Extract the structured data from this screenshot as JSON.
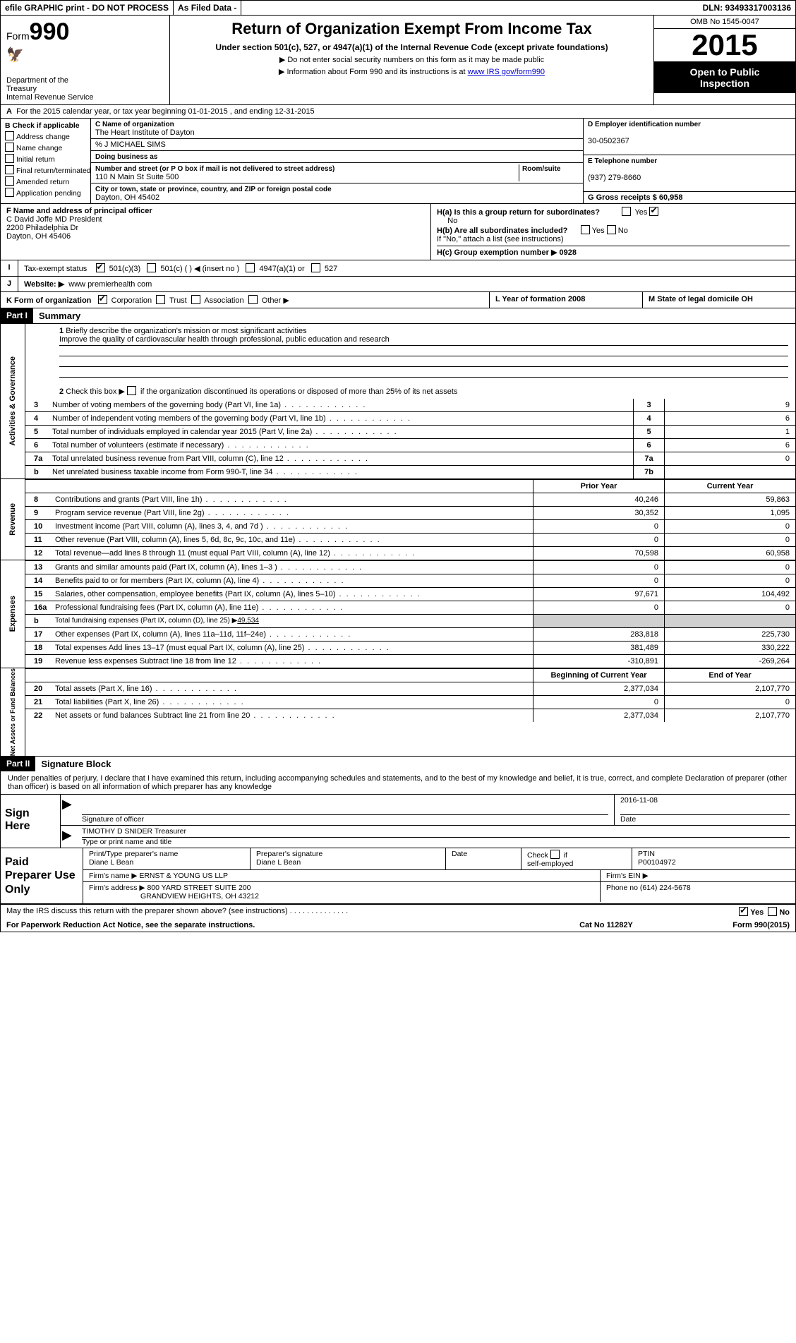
{
  "topbar": {
    "efile": "efile GRAPHIC print - DO NOT PROCESS",
    "asfiled": "As Filed Data -",
    "dln": "DLN: 93493317003136"
  },
  "header": {
    "form_prefix": "Form",
    "form_number": "990",
    "dept1": "Department of the",
    "dept2": "Treasury",
    "dept3": "Internal Revenue Service",
    "title": "Return of Organization Exempt From Income Tax",
    "subtitle": "Under section 501(c), 527, or 4947(a)(1) of the Internal Revenue Code (except private foundations)",
    "note1": "Do not enter social security numbers on this form as it may be made public",
    "note2_prefix": "Information about Form 990 and its instructions is at ",
    "note2_link": "www IRS gov/form990",
    "omb": "OMB No 1545-0047",
    "year": "2015",
    "open1": "Open to Public",
    "open2": "Inspection"
  },
  "rowA": {
    "prefix": "A",
    "text": "For the 2015 calendar year, or tax year beginning 01-01-2015     , and ending 12-31-2015"
  },
  "colB": {
    "label": "B  Check if applicable",
    "items": [
      "Address change",
      "Name change",
      "Initial return",
      "Final return/terminated",
      "Amended return",
      "Application pending"
    ]
  },
  "colC": {
    "c_label": "C Name of organization",
    "org": "The Heart Institute of Dayton",
    "care": "% J MICHAEL SIMS",
    "dba_label": "Doing business as",
    "addr_label": "Number and street (or P O box if mail is not delivered to street address)",
    "room_label": "Room/suite",
    "addr": "110 N Main St Suite 500",
    "city_label": "City or town, state or province, country, and ZIP or foreign postal code",
    "city": "Dayton, OH  45402",
    "f_label": "F  Name and address of principal officer",
    "f_name": "C David Joffe MD President",
    "f_addr": "2200 Philadelphia Dr",
    "f_city": "Dayton, OH  45406"
  },
  "colD": {
    "d_label": "D Employer identification number",
    "ein": "30-0502367",
    "e_label": "E Telephone number",
    "phone": "(937) 279-8660",
    "g_label": "G Gross receipts $ 60,958"
  },
  "rowH": {
    "ha": "H(a)  Is this a group return for subordinates?",
    "ha_ans_no": "No",
    "hb": "H(b)  Are all subordinates included?",
    "hb_note": "If \"No,\" attach a list  (see instructions)",
    "hc": "H(c)  Group exemption number ▶  0928",
    "yes": "Yes",
    "no": "No"
  },
  "rowI": {
    "label": "I",
    "text": "Tax-exempt status",
    "opts": [
      "501(c)(3)",
      "501(c) (  ) ◀ (insert no )",
      "4947(a)(1) or",
      "527"
    ]
  },
  "rowJ": {
    "label": "J",
    "text": "Website: ▶",
    "url": "www premierhealth com"
  },
  "rowK": {
    "k": "K Form of organization",
    "opts": [
      "Corporation",
      "Trust",
      "Association",
      "Other ▶"
    ],
    "l": "L Year of formation  2008",
    "m": "M State of legal domicile  OH"
  },
  "part1": {
    "hdr": "Part I",
    "title": "Summary",
    "q1_num": "1",
    "q1": "Briefly describe the organization's mission or most significant activities",
    "q1_ans": "Improve the quality of cardiovascular health through professional, public education and research",
    "q2_num": "2",
    "q2": "Check this box ▶      if the organization discontinued its operations or disposed of more than 25% of its net assets"
  },
  "gov": {
    "label": "Activities & Governance",
    "rows": [
      {
        "n": "3",
        "t": "Number of voting members of the governing body (Part VI, line 1a)",
        "an": "3",
        "v": "9"
      },
      {
        "n": "4",
        "t": "Number of independent voting members of the governing body (Part VI, line 1b)",
        "an": "4",
        "v": "6"
      },
      {
        "n": "5",
        "t": "Total number of individuals employed in calendar year 2015 (Part V, line 2a)",
        "an": "5",
        "v": "1"
      },
      {
        "n": "6",
        "t": "Total number of volunteers (estimate if necessary)",
        "an": "6",
        "v": "6"
      },
      {
        "n": "7a",
        "t": "Total unrelated business revenue from Part VIII, column (C), line 12",
        "an": "7a",
        "v": "0"
      },
      {
        "n": "b",
        "t": "Net unrelated business taxable income from Form 990-T, line 34",
        "an": "7b",
        "v": ""
      }
    ]
  },
  "rev": {
    "label": "Revenue",
    "hdr_prior": "Prior Year",
    "hdr_curr": "Current Year",
    "rows": [
      {
        "n": "8",
        "t": "Contributions and grants (Part VIII, line 1h)",
        "p": "40,246",
        "c": "59,863"
      },
      {
        "n": "9",
        "t": "Program service revenue (Part VIII, line 2g)",
        "p": "30,352",
        "c": "1,095"
      },
      {
        "n": "10",
        "t": "Investment income (Part VIII, column (A), lines 3, 4, and 7d )",
        "p": "0",
        "c": "0"
      },
      {
        "n": "11",
        "t": "Other revenue (Part VIII, column (A), lines 5, 6d, 8c, 9c, 10c, and 11e)",
        "p": "0",
        "c": "0"
      },
      {
        "n": "12",
        "t": "Total revenue—add lines 8 through 11 (must equal Part VIII, column (A), line 12)",
        "p": "70,598",
        "c": "60,958"
      }
    ]
  },
  "exp": {
    "label": "Expenses",
    "rows": [
      {
        "n": "13",
        "t": "Grants and similar amounts paid (Part IX, column (A), lines 1–3 )",
        "p": "0",
        "c": "0"
      },
      {
        "n": "14",
        "t": "Benefits paid to or for members (Part IX, column (A), line 4)",
        "p": "0",
        "c": "0"
      },
      {
        "n": "15",
        "t": "Salaries, other compensation, employee benefits (Part IX, column (A), lines 5–10)",
        "p": "97,671",
        "c": "104,492"
      },
      {
        "n": "16a",
        "t": "Professional fundraising fees (Part IX, column (A), line 11e)",
        "p": "0",
        "c": "0"
      }
    ],
    "row_b": {
      "n": "b",
      "t": "Total fundraising expenses (Part IX, column (D), line 25) ▶",
      "amt": "49,534"
    },
    "rows2": [
      {
        "n": "17",
        "t": "Other expenses (Part IX, column (A), lines 11a–11d, 11f–24e)",
        "p": "283,818",
        "c": "225,730"
      },
      {
        "n": "18",
        "t": "Total expenses  Add lines 13–17 (must equal Part IX, column (A), line 25)",
        "p": "381,489",
        "c": "330,222"
      },
      {
        "n": "19",
        "t": "Revenue less expenses  Subtract line 18 from line 12",
        "p": "-310,891",
        "c": "-269,264"
      }
    ]
  },
  "nab": {
    "label": "Net Assets or Fund Balances",
    "hdr_begin": "Beginning of Current Year",
    "hdr_end": "End of Year",
    "rows": [
      {
        "n": "20",
        "t": "Total assets (Part X, line 16)",
        "p": "2,377,034",
        "c": "2,107,770"
      },
      {
        "n": "21",
        "t": "Total liabilities (Part X, line 26)",
        "p": "0",
        "c": "0"
      },
      {
        "n": "22",
        "t": "Net assets or fund balances  Subtract line 21 from line 20",
        "p": "2,377,034",
        "c": "2,107,770"
      }
    ]
  },
  "part2": {
    "hdr": "Part II",
    "title": "Signature Block",
    "perjury": "Under penalties of perjury, I declare that I have examined this return, including accompanying schedules and statements, and to the best of my knowledge and belief, it is true, correct, and complete  Declaration of preparer (other than officer) is based on all information of which preparer has any knowledge"
  },
  "sign": {
    "label": "Sign Here",
    "sig_label": "Signature of officer",
    "date_label": "Date",
    "date": "2016-11-08",
    "name": "TIMOTHY D SNIDER Treasurer",
    "name_label": "Type or print name and title"
  },
  "prep": {
    "label": "Paid Preparer Use Only",
    "r1": {
      "c1_lbl": "Print/Type preparer's name",
      "c1": "Diane L Bean",
      "c2_lbl": "Preparer's signature",
      "c2": "Diane L Bean",
      "c3_lbl": "Date",
      "c4_lbl": "Check      if self-employed",
      "c5_lbl": "PTIN",
      "c5": "P00104972"
    },
    "r2": {
      "lbl": "Firm's name      ▶",
      "val": "ERNST & YOUNG US LLP",
      "ein_lbl": "Firm's EIN ▶"
    },
    "r3": {
      "lbl": "Firm's address ▶",
      "val1": "800 YARD STREET SUITE 200",
      "val2": "GRANDVIEW HEIGHTS, OH  43212",
      "ph_lbl": "Phone no  (614) 224-5678"
    }
  },
  "footer": {
    "discuss": "May the IRS discuss this return with the preparer shown above? (see instructions)",
    "yes": "Yes",
    "no": "No",
    "paperwork": "For Paperwork Reduction Act Notice, see the separate instructions.",
    "cat": "Cat No 11282Y",
    "form": "Form 990 (2015)"
  }
}
